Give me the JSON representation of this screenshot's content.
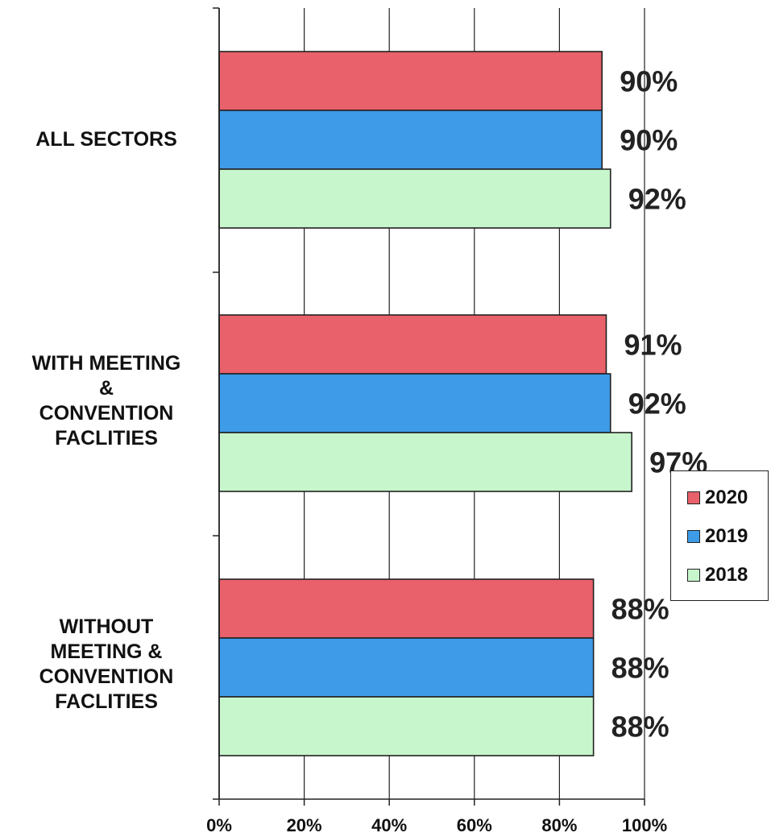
{
  "chart_data": {
    "type": "bar",
    "orientation": "horizontal",
    "categories": [
      "ALL SECTORS",
      "WITH MEETING\n&\nCONVENTION\nFACLITIES",
      "WITHOUT\nMEETING &\nCONVENTION\nFACLITIES"
    ],
    "series": [
      {
        "name": "2020",
        "color": "#e8616b",
        "values": [
          90,
          91,
          88
        ],
        "labels": [
          "90%",
          "91%",
          "88%"
        ]
      },
      {
        "name": "2019",
        "color": "#3e9be8",
        "values": [
          90,
          92,
          88
        ],
        "labels": [
          "90%",
          "92%",
          "88%"
        ]
      },
      {
        "name": "2018",
        "color": "#c7f5cc",
        "values": [
          92,
          97,
          88
        ],
        "labels": [
          "92%",
          "97%",
          "88%"
        ]
      }
    ],
    "xlim": [
      0,
      100
    ],
    "xticks": [
      "0%",
      "20%",
      "40%",
      "60%",
      "80%",
      "100%"
    ],
    "grid": true,
    "legend_position": "right"
  }
}
